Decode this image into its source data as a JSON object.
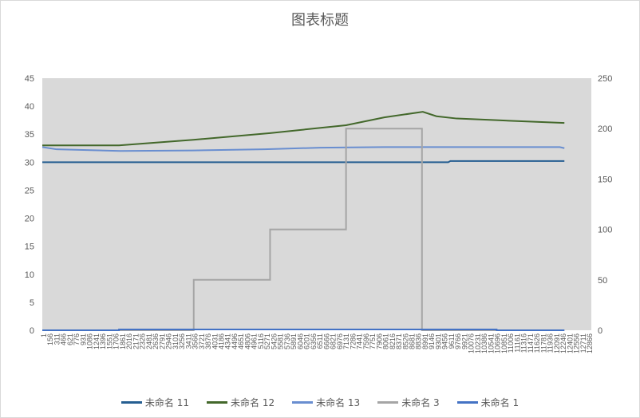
{
  "chart_data": {
    "type": "line",
    "title": "图表标题",
    "x_tick_labels": [
      "1",
      "156",
      "311",
      "466",
      "621",
      "776",
      "931",
      "1086",
      "1241",
      "1396",
      "1551",
      "1706",
      "1861",
      "2016",
      "2171",
      "2326",
      "2481",
      "2636",
      "2791",
      "2946",
      "3101",
      "3256",
      "3411",
      "3566",
      "3721",
      "3876",
      "4031",
      "4186",
      "4341",
      "4496",
      "4651",
      "4806",
      "4961",
      "5116",
      "5271",
      "5426",
      "5581",
      "5736",
      "5891",
      "6046",
      "6201",
      "6356",
      "6511",
      "6666",
      "6821",
      "6976",
      "7131",
      "7286",
      "7441",
      "7596",
      "7751",
      "7906",
      "8061",
      "8216",
      "8371",
      "8526",
      "8681",
      "8836",
      "8991",
      "9146",
      "9301",
      "9456",
      "9611",
      "9766",
      "9921",
      "10076",
      "10231",
      "10386",
      "10541",
      "10696",
      "10851",
      "11006",
      "11161",
      "11316",
      "11471",
      "11626",
      "11781",
      "11936",
      "12091",
      "12246",
      "12401",
      "12556",
      "12711",
      "12866"
    ],
    "xlim": [
      1,
      13050
    ],
    "y_left": {
      "ticks": [
        "0",
        "5",
        "10",
        "15",
        "20",
        "25",
        "30",
        "35",
        "40",
        "45"
      ],
      "range": [
        0,
        45
      ]
    },
    "y_right": {
      "ticks": [
        "0",
        "50",
        "100",
        "150",
        "200",
        "250"
      ],
      "range": [
        0,
        250
      ]
    },
    "grid": false,
    "legend_position": "bottom",
    "series": [
      {
        "name": "未命名 11",
        "axis": "left",
        "color": "#255e91",
        "step": false,
        "points": [
          [
            1,
            30.0
          ],
          [
            9650,
            30.0
          ],
          [
            9700,
            30.2
          ],
          [
            12410,
            30.2
          ]
        ]
      },
      {
        "name": "未命名 12",
        "axis": "left",
        "color": "#43682b",
        "step": false,
        "points": [
          [
            1,
            33.0
          ],
          [
            1824,
            33.0
          ],
          [
            3591,
            34.0
          ],
          [
            5415,
            35.2
          ],
          [
            7220,
            36.6
          ],
          [
            8130,
            38.0
          ],
          [
            9045,
            39.0
          ],
          [
            9370,
            38.2
          ],
          [
            9850,
            37.8
          ],
          [
            10800,
            37.5
          ],
          [
            12410,
            37.0
          ]
        ]
      },
      {
        "name": "未命名 13",
        "axis": "left",
        "color": "#698ed0",
        "step": false,
        "points": [
          [
            1,
            32.7
          ],
          [
            340,
            32.3
          ],
          [
            1860,
            32.0
          ],
          [
            3570,
            32.1
          ],
          [
            5280,
            32.3
          ],
          [
            6610,
            32.6
          ],
          [
            8130,
            32.7
          ],
          [
            12300,
            32.7
          ],
          [
            12410,
            32.5
          ]
        ]
      },
      {
        "name": "未命名 3",
        "axis": "right",
        "color": "#a5a5a5",
        "step": true,
        "points": [
          [
            1,
            0
          ],
          [
            3600,
            50
          ],
          [
            5415,
            100
          ],
          [
            7220,
            200
          ],
          [
            9025,
            0
          ],
          [
            12410,
            0
          ]
        ]
      },
      {
        "name": "未命名 1",
        "axis": "left",
        "color": "#4472c4",
        "step": true,
        "points": [
          [
            1,
            0
          ],
          [
            1824,
            0.15
          ],
          [
            10800,
            0
          ],
          [
            12410,
            0
          ]
        ]
      }
    ]
  }
}
